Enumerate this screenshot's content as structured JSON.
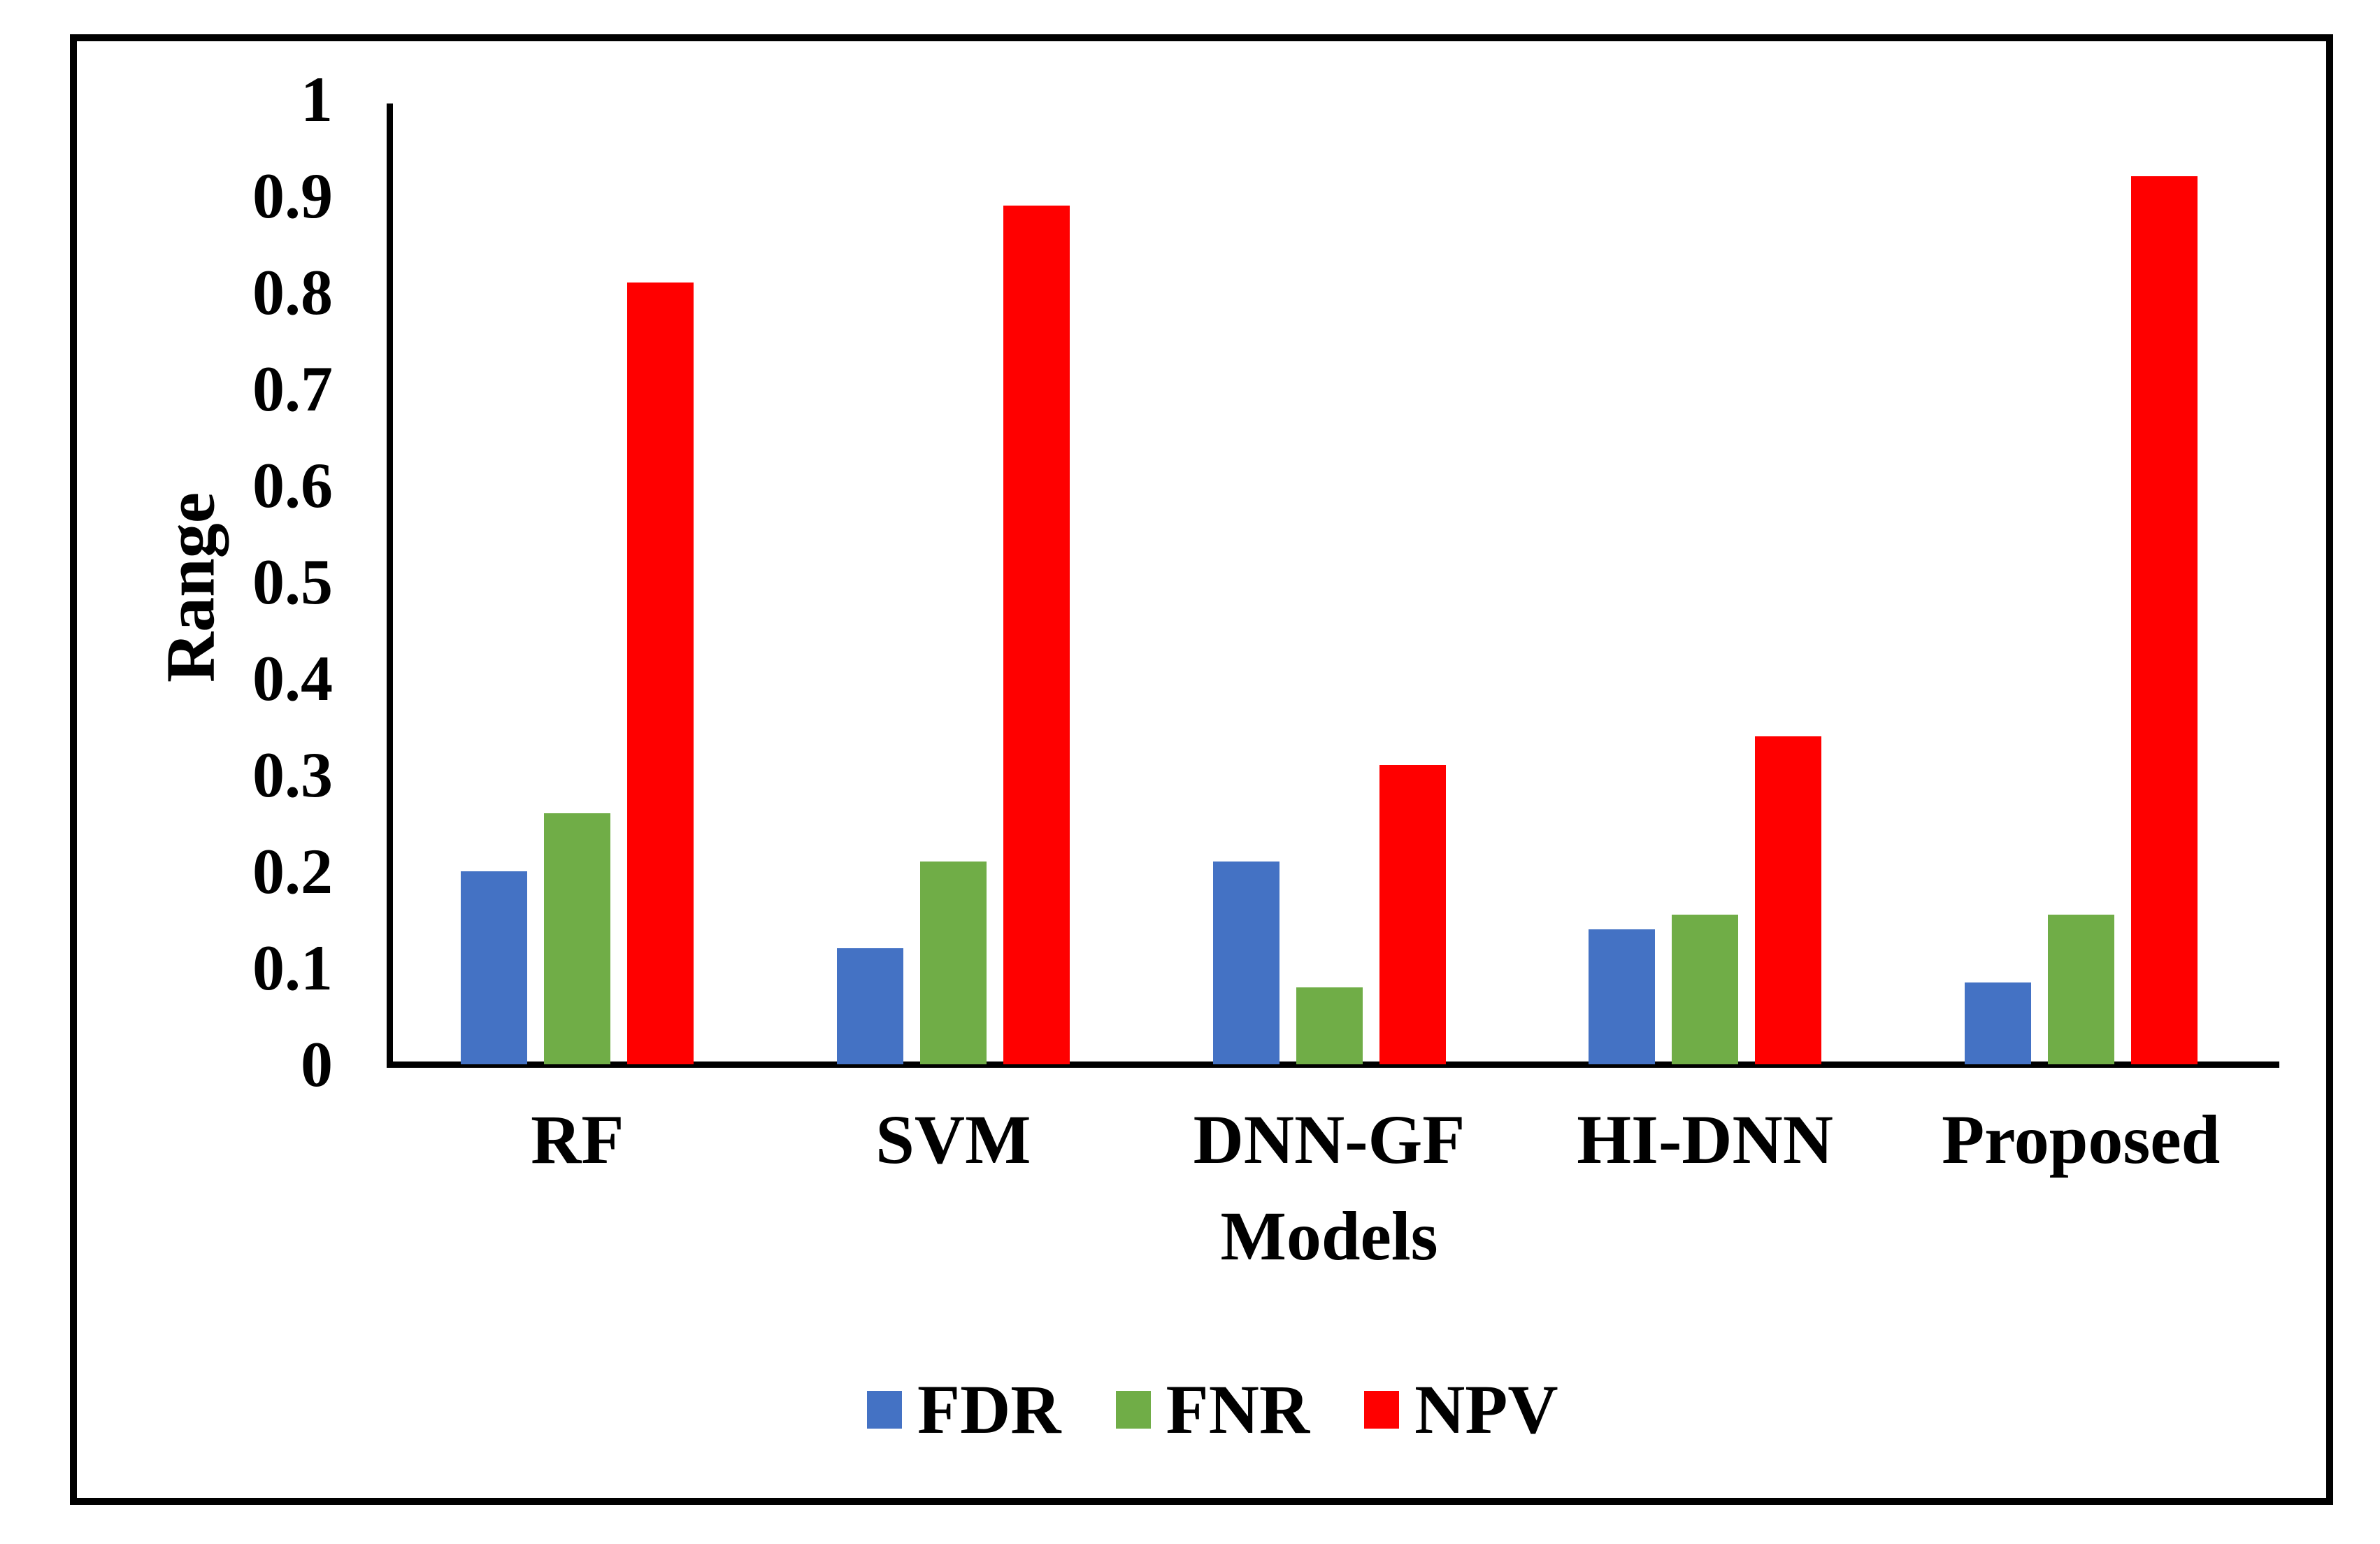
{
  "chart_data": {
    "type": "bar",
    "title": "",
    "categories": [
      "RF",
      "SVM",
      "DNN-GF",
      "HI-DNN",
      "Proposed"
    ],
    "series": [
      {
        "name": "FDR",
        "color": "#4472C4",
        "values": [
          0.2,
          0.12,
          0.21,
          0.14,
          0.085
        ]
      },
      {
        "name": "FNR",
        "color": "#70AD47",
        "values": [
          0.26,
          0.21,
          0.08,
          0.155,
          0.155
        ]
      },
      {
        "name": "NPV",
        "color": "#FF0000",
        "values": [
          0.81,
          0.89,
          0.31,
          0.34,
          0.92
        ]
      }
    ],
    "xlabel": "Models",
    "ylabel": "Range",
    "ylim": [
      0,
      1
    ],
    "y_ticks": [
      "0",
      "0.1",
      "0.2",
      "0.3",
      "0.4",
      "0.5",
      "0.6",
      "0.7",
      "0.8",
      "0.9",
      "1"
    ],
    "grid": false,
    "legend_position": "bottom",
    "frame_border_color": "#000000",
    "axis_color": "#000000"
  }
}
